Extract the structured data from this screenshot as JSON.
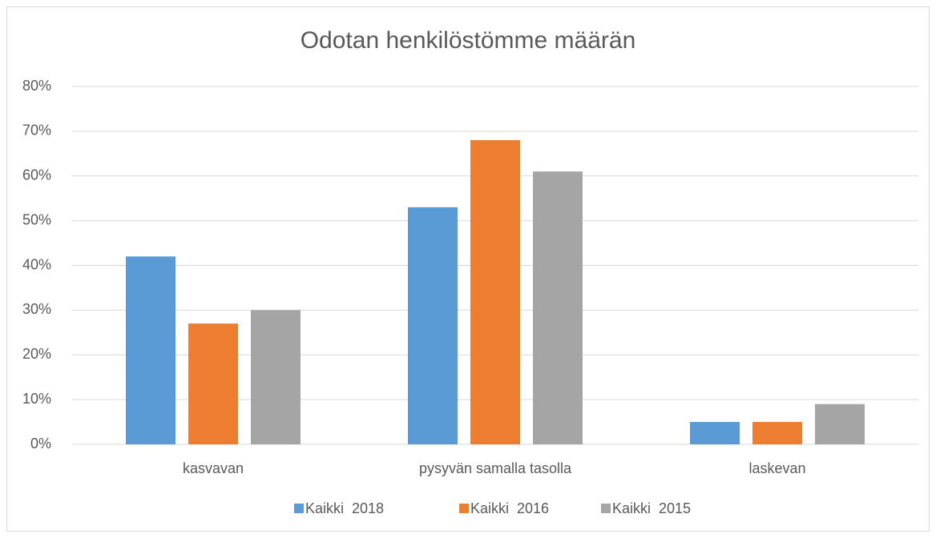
{
  "chart_data": {
    "type": "bar",
    "title": "Odotan henkilöstömme määrän",
    "categories": [
      "kasvavan",
      "pysyvän samalla tasolla",
      "laskevan"
    ],
    "series": [
      {
        "name": "Kaikki  2018",
        "color": "#5b9bd5",
        "values": [
          42,
          53,
          5
        ]
      },
      {
        "name": "Kaikki  2016",
        "color": "#ed7d31",
        "values": [
          27,
          68,
          5
        ]
      },
      {
        "name": "Kaikki  2015",
        "color": "#a5a5a5",
        "values": [
          30,
          61,
          9
        ]
      }
    ],
    "ylim": [
      0,
      80
    ],
    "yticks": [
      {
        "value": 0,
        "label": "0%"
      },
      {
        "value": 10,
        "label": "10%"
      },
      {
        "value": 20,
        "label": "20%"
      },
      {
        "value": 30,
        "label": "30%"
      },
      {
        "value": 40,
        "label": "40%"
      },
      {
        "value": 50,
        "label": "50%"
      },
      {
        "value": 60,
        "label": "60%"
      },
      {
        "value": 70,
        "label": "70%"
      },
      {
        "value": 80,
        "label": "80%"
      }
    ],
    "grid": true,
    "legend": "bottom"
  }
}
